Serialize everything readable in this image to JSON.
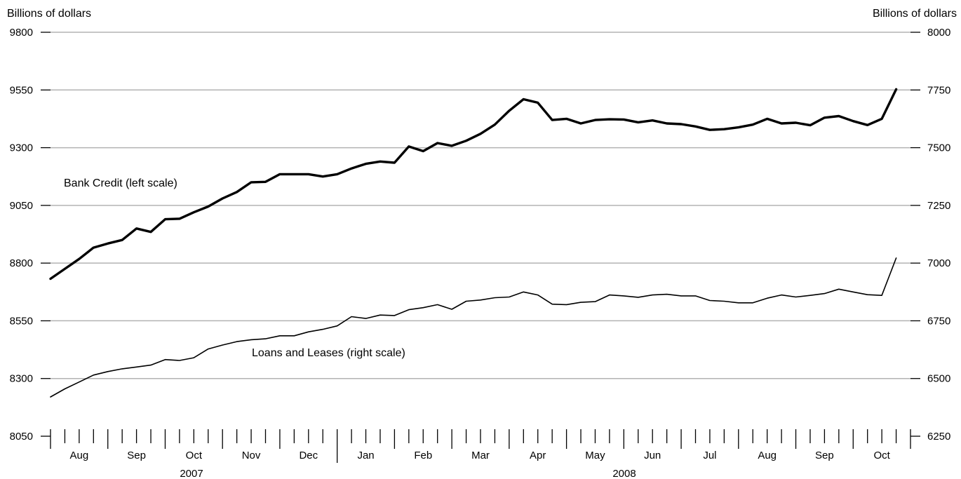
{
  "chart_data": {
    "type": "line",
    "left_axis": {
      "title": "Billions of dollars",
      "ylim": [
        8050,
        9800
      ],
      "ticks": [
        "9800",
        "9550",
        "9300",
        "9050",
        "8800",
        "8550",
        "8300",
        "8050"
      ]
    },
    "right_axis": {
      "title": "Billions of dollars",
      "ylim": [
        6250,
        8000
      ],
      "ticks": [
        "8000",
        "7750",
        "7500",
        "7250",
        "7000",
        "6750",
        "6500",
        "6250"
      ]
    },
    "x_axis": {
      "months": [
        "Aug",
        "Sep",
        "Oct",
        "Nov",
        "Dec",
        "Jan",
        "Feb",
        "Mar",
        "Apr",
        "May",
        "Jun",
        "Jul",
        "Aug",
        "Sep",
        "Oct"
      ],
      "years": [
        "2007",
        "2008"
      ]
    },
    "grid": "horizontal",
    "series": [
      {
        "name": "Bank Credit (left scale)",
        "axis": "left",
        "values": [
          8732,
          8775,
          8818,
          8867,
          8885,
          8900,
          8950,
          8935,
          8990,
          8992,
          9020,
          9045,
          9080,
          9108,
          9150,
          9152,
          9185,
          9185,
          9185,
          9175,
          9185,
          9210,
          9230,
          9240,
          9235,
          9305,
          9285,
          9320,
          9308,
          9330,
          9360,
          9400,
          9460,
          9510,
          9495,
          9420,
          9425,
          9405,
          9420,
          9423,
          9422,
          9410,
          9418,
          9405,
          9402,
          9392,
          9377,
          9380,
          9388,
          9400,
          9425,
          9405,
          9408,
          9397,
          9430,
          9437,
          9415,
          9398,
          9425,
          9553
        ]
      },
      {
        "name": "Loans and Leases (right scale)",
        "axis": "right",
        "values": [
          6420,
          6455,
          6485,
          6515,
          6530,
          6542,
          6550,
          6558,
          6582,
          6578,
          6590,
          6628,
          6645,
          6660,
          6668,
          6672,
          6685,
          6685,
          6702,
          6713,
          6728,
          6768,
          6760,
          6775,
          6773,
          6798,
          6807,
          6820,
          6800,
          6835,
          6840,
          6850,
          6853,
          6875,
          6862,
          6822,
          6820,
          6830,
          6833,
          6862,
          6858,
          6852,
          6862,
          6865,
          6858,
          6858,
          6838,
          6835,
          6828,
          6828,
          6848,
          6862,
          6853,
          6860,
          6868,
          6887,
          6875,
          6863,
          6860,
          7022
        ]
      }
    ]
  }
}
